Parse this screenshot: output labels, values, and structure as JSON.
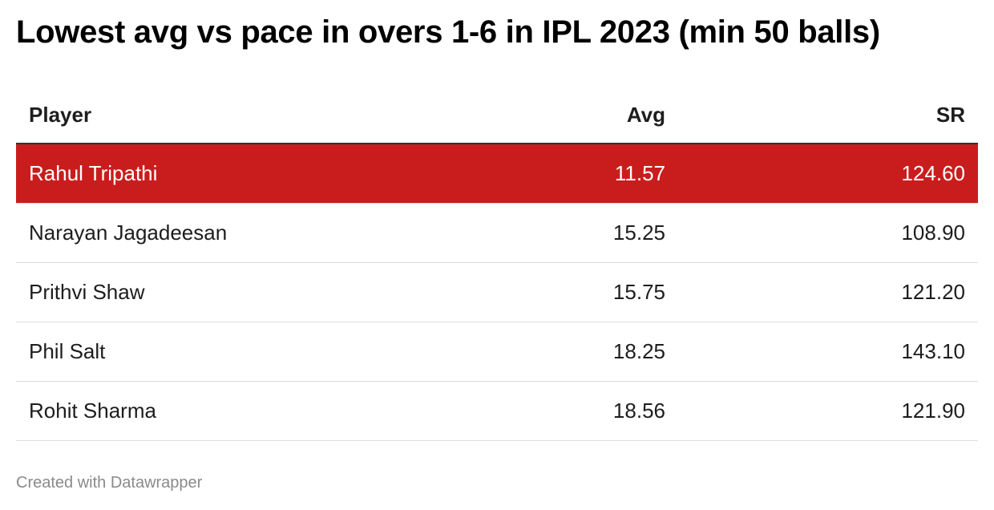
{
  "title": "Lowest avg vs pace in overs 1-6 in IPL 2023 (min 50 balls)",
  "footer": "Created with Datawrapper",
  "colors": {
    "highlight": "#c91d1d",
    "divider": "#dcdcdc",
    "header_rule": "#333333"
  },
  "chart_data": {
    "type": "table",
    "title": "Lowest avg vs pace in overs 1-6 in IPL 2023 (min 50 balls)",
    "columns": [
      "Player",
      "Avg",
      "SR"
    ],
    "rows": [
      {
        "player": "Rahul Tripathi",
        "avg": "11.57",
        "sr": "124.60",
        "highlighted": true
      },
      {
        "player": "Narayan Jagadeesan",
        "avg": "15.25",
        "sr": "108.90",
        "highlighted": false
      },
      {
        "player": "Prithvi Shaw",
        "avg": "15.75",
        "sr": "121.20",
        "highlighted": false
      },
      {
        "player": "Phil Salt",
        "avg": "18.25",
        "sr": "143.10",
        "highlighted": false
      },
      {
        "player": "Rohit Sharma",
        "avg": "18.56",
        "sr": "121.90",
        "highlighted": false
      }
    ]
  }
}
